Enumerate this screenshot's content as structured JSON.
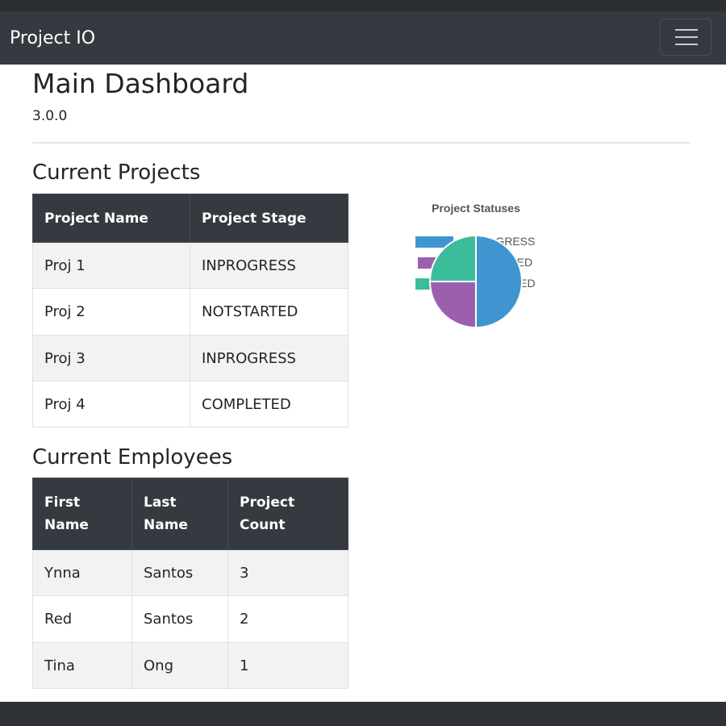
{
  "navbar": {
    "brand": "Project IO",
    "toggle_icon": "hamburger-menu-icon"
  },
  "header": {
    "title": "Main Dashboard",
    "version": "3.0.0"
  },
  "projects": {
    "title": "Current Projects",
    "columns": [
      "Project Name",
      "Project Stage"
    ],
    "rows": [
      [
        "Proj 1",
        "INPROGRESS"
      ],
      [
        "Proj 2",
        "NOTSTARTED"
      ],
      [
        "Proj 3",
        "INPROGRESS"
      ],
      [
        "Proj 4",
        "COMPLETED"
      ]
    ]
  },
  "employees": {
    "title": "Current Employees",
    "columns": [
      "First Name",
      "Last Name",
      "Project Count"
    ],
    "rows": [
      [
        "Ynna",
        "Santos",
        "3"
      ],
      [
        "Red",
        "Santos",
        "2"
      ],
      [
        "Tina",
        "Ong",
        "1"
      ]
    ]
  },
  "colors": {
    "navbar": "#343a40",
    "inprogress": "#3f95d0",
    "completed": "#9b5fae",
    "notstarted": "#3bbc9b"
  },
  "chart_data": {
    "type": "pie",
    "title": "Project Statuses",
    "legend": "top",
    "labels": [
      "INPROGRESS",
      "COMPLETED",
      "NOTSTARTED"
    ],
    "values": [
      2,
      1,
      1
    ],
    "colors": [
      "#3f95d0",
      "#9b5fae",
      "#3bbc9b"
    ]
  }
}
